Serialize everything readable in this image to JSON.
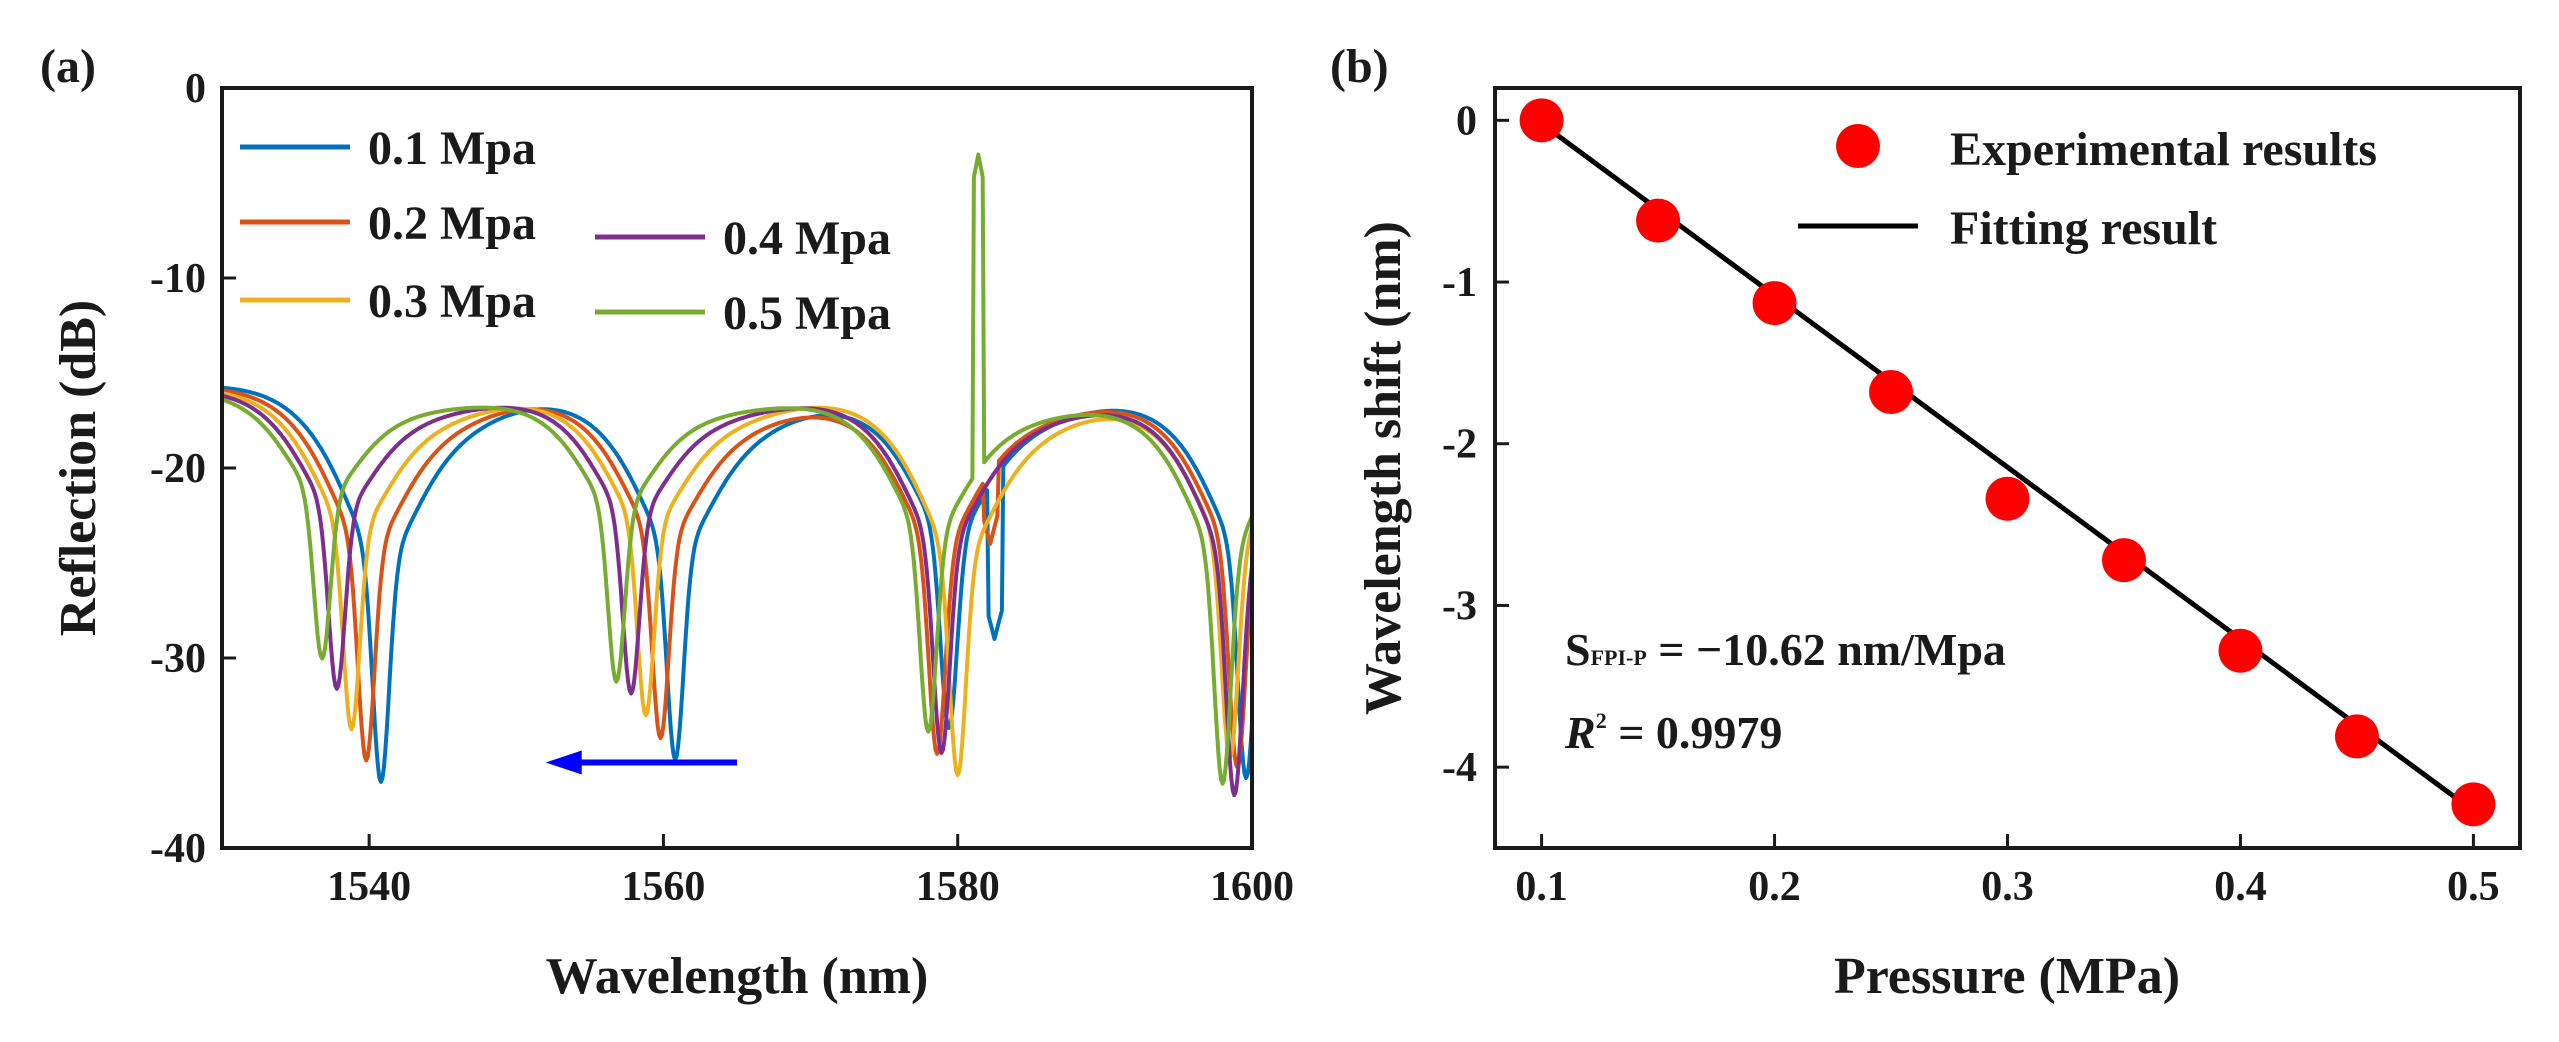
{
  "figure": {
    "panel_a_label": "(a)",
    "panel_b_label": "(b)"
  },
  "chart_data": [
    {
      "type": "line",
      "panel": "(a)",
      "xlabel": "Wavelength (nm)",
      "ylabel": "Reflection (dB)",
      "xlim": [
        1530,
        1600
      ],
      "ylim": [
        -40,
        0
      ],
      "xticks": [
        1540,
        1560,
        1580,
        1600
      ],
      "yticks": [
        0,
        -10,
        -20,
        -30,
        -40
      ],
      "grid": false,
      "legend_position": "top-left",
      "series": [
        {
          "name": "0.1 Mpa",
          "color": "#0072BD",
          "dips": [
            1540.8,
            1560.8,
            1579.4,
            1599.6
          ],
          "dip_depth": [
            -36,
            -34.5,
            -33,
            -36
          ],
          "spike_nm": 1582.5,
          "spike_db": -29
        },
        {
          "name": "0.2 Mpa",
          "color": "#D95319",
          "dips": [
            1539.8,
            1559.8,
            1578.6,
            1599.0
          ],
          "dip_depth": [
            -35,
            -33.5,
            -34.5,
            -35.5
          ],
          "spike_nm": 1582.2,
          "spike_db": -24
        },
        {
          "name": "0.3 Mpa",
          "color": "#EDB120",
          "dips": [
            1538.8,
            1558.8,
            1580.0,
            1598.5
          ],
          "dip_depth": [
            -33.5,
            -32.5,
            -35.5,
            -35
          ],
          "spike_nm": 1581.9,
          "spike_db": -21
        },
        {
          "name": "0.4 Mpa",
          "color": "#7E2F8E",
          "dips": [
            1537.8,
            1557.8,
            1578.9,
            1598.8
          ],
          "dip_depth": [
            -31.5,
            -31.5,
            -34.5,
            -37
          ],
          "spike_nm": 1581.6,
          "spike_db": -19
        },
        {
          "name": "0.5 Mpa",
          "color": "#77AC30",
          "dips": [
            1536.8,
            1556.8,
            1578.0,
            1598.0
          ],
          "dip_depth": [
            -30,
            -31,
            -33.5,
            -36.5
          ],
          "spike_nm": 1581.4,
          "spike_db": -3.5
        }
      ],
      "baseline_db": -14.5,
      "annotation_arrow": {
        "from_nm": 1565,
        "to_nm": 1552,
        "at_db": -35.5,
        "color": "#0000FF",
        "meaning": "blue shift with increasing pressure"
      }
    },
    {
      "type": "scatter",
      "panel": "(b)",
      "xlabel": "Pressure (MPa)",
      "ylabel": "Wavelength shift (nm)",
      "xlim": [
        0.08,
        0.52
      ],
      "ylim": [
        -4.5,
        0.2
      ],
      "xticks": [
        0.1,
        0.2,
        0.3,
        0.4,
        0.5
      ],
      "yticks": [
        0,
        -1,
        -2,
        -3,
        -4
      ],
      "grid": false,
      "legend_position": "top-right",
      "series": [
        {
          "name": "Experimental results",
          "kind": "markers",
          "color": "#FF0000",
          "x": [
            0.1,
            0.15,
            0.2,
            0.25,
            0.3,
            0.35,
            0.4,
            0.45,
            0.5
          ],
          "y": [
            0,
            -0.62,
            -1.13,
            -1.68,
            -2.34,
            -2.72,
            -3.28,
            -3.81,
            -4.23
          ]
        },
        {
          "name": "Fitting result",
          "kind": "line",
          "color": "#000000",
          "x": [
            0.1,
            0.5
          ],
          "y": [
            -0.02,
            -4.27
          ]
        }
      ],
      "annotation": {
        "sensitivity_main": "S",
        "sensitivity_sub": "FPI-P",
        "sensitivity_value": " = −10.62 nm/Mpa",
        "r2_symbol": "R",
        "r2_sup": "2",
        "r2_value": " = 0.9979"
      }
    }
  ]
}
